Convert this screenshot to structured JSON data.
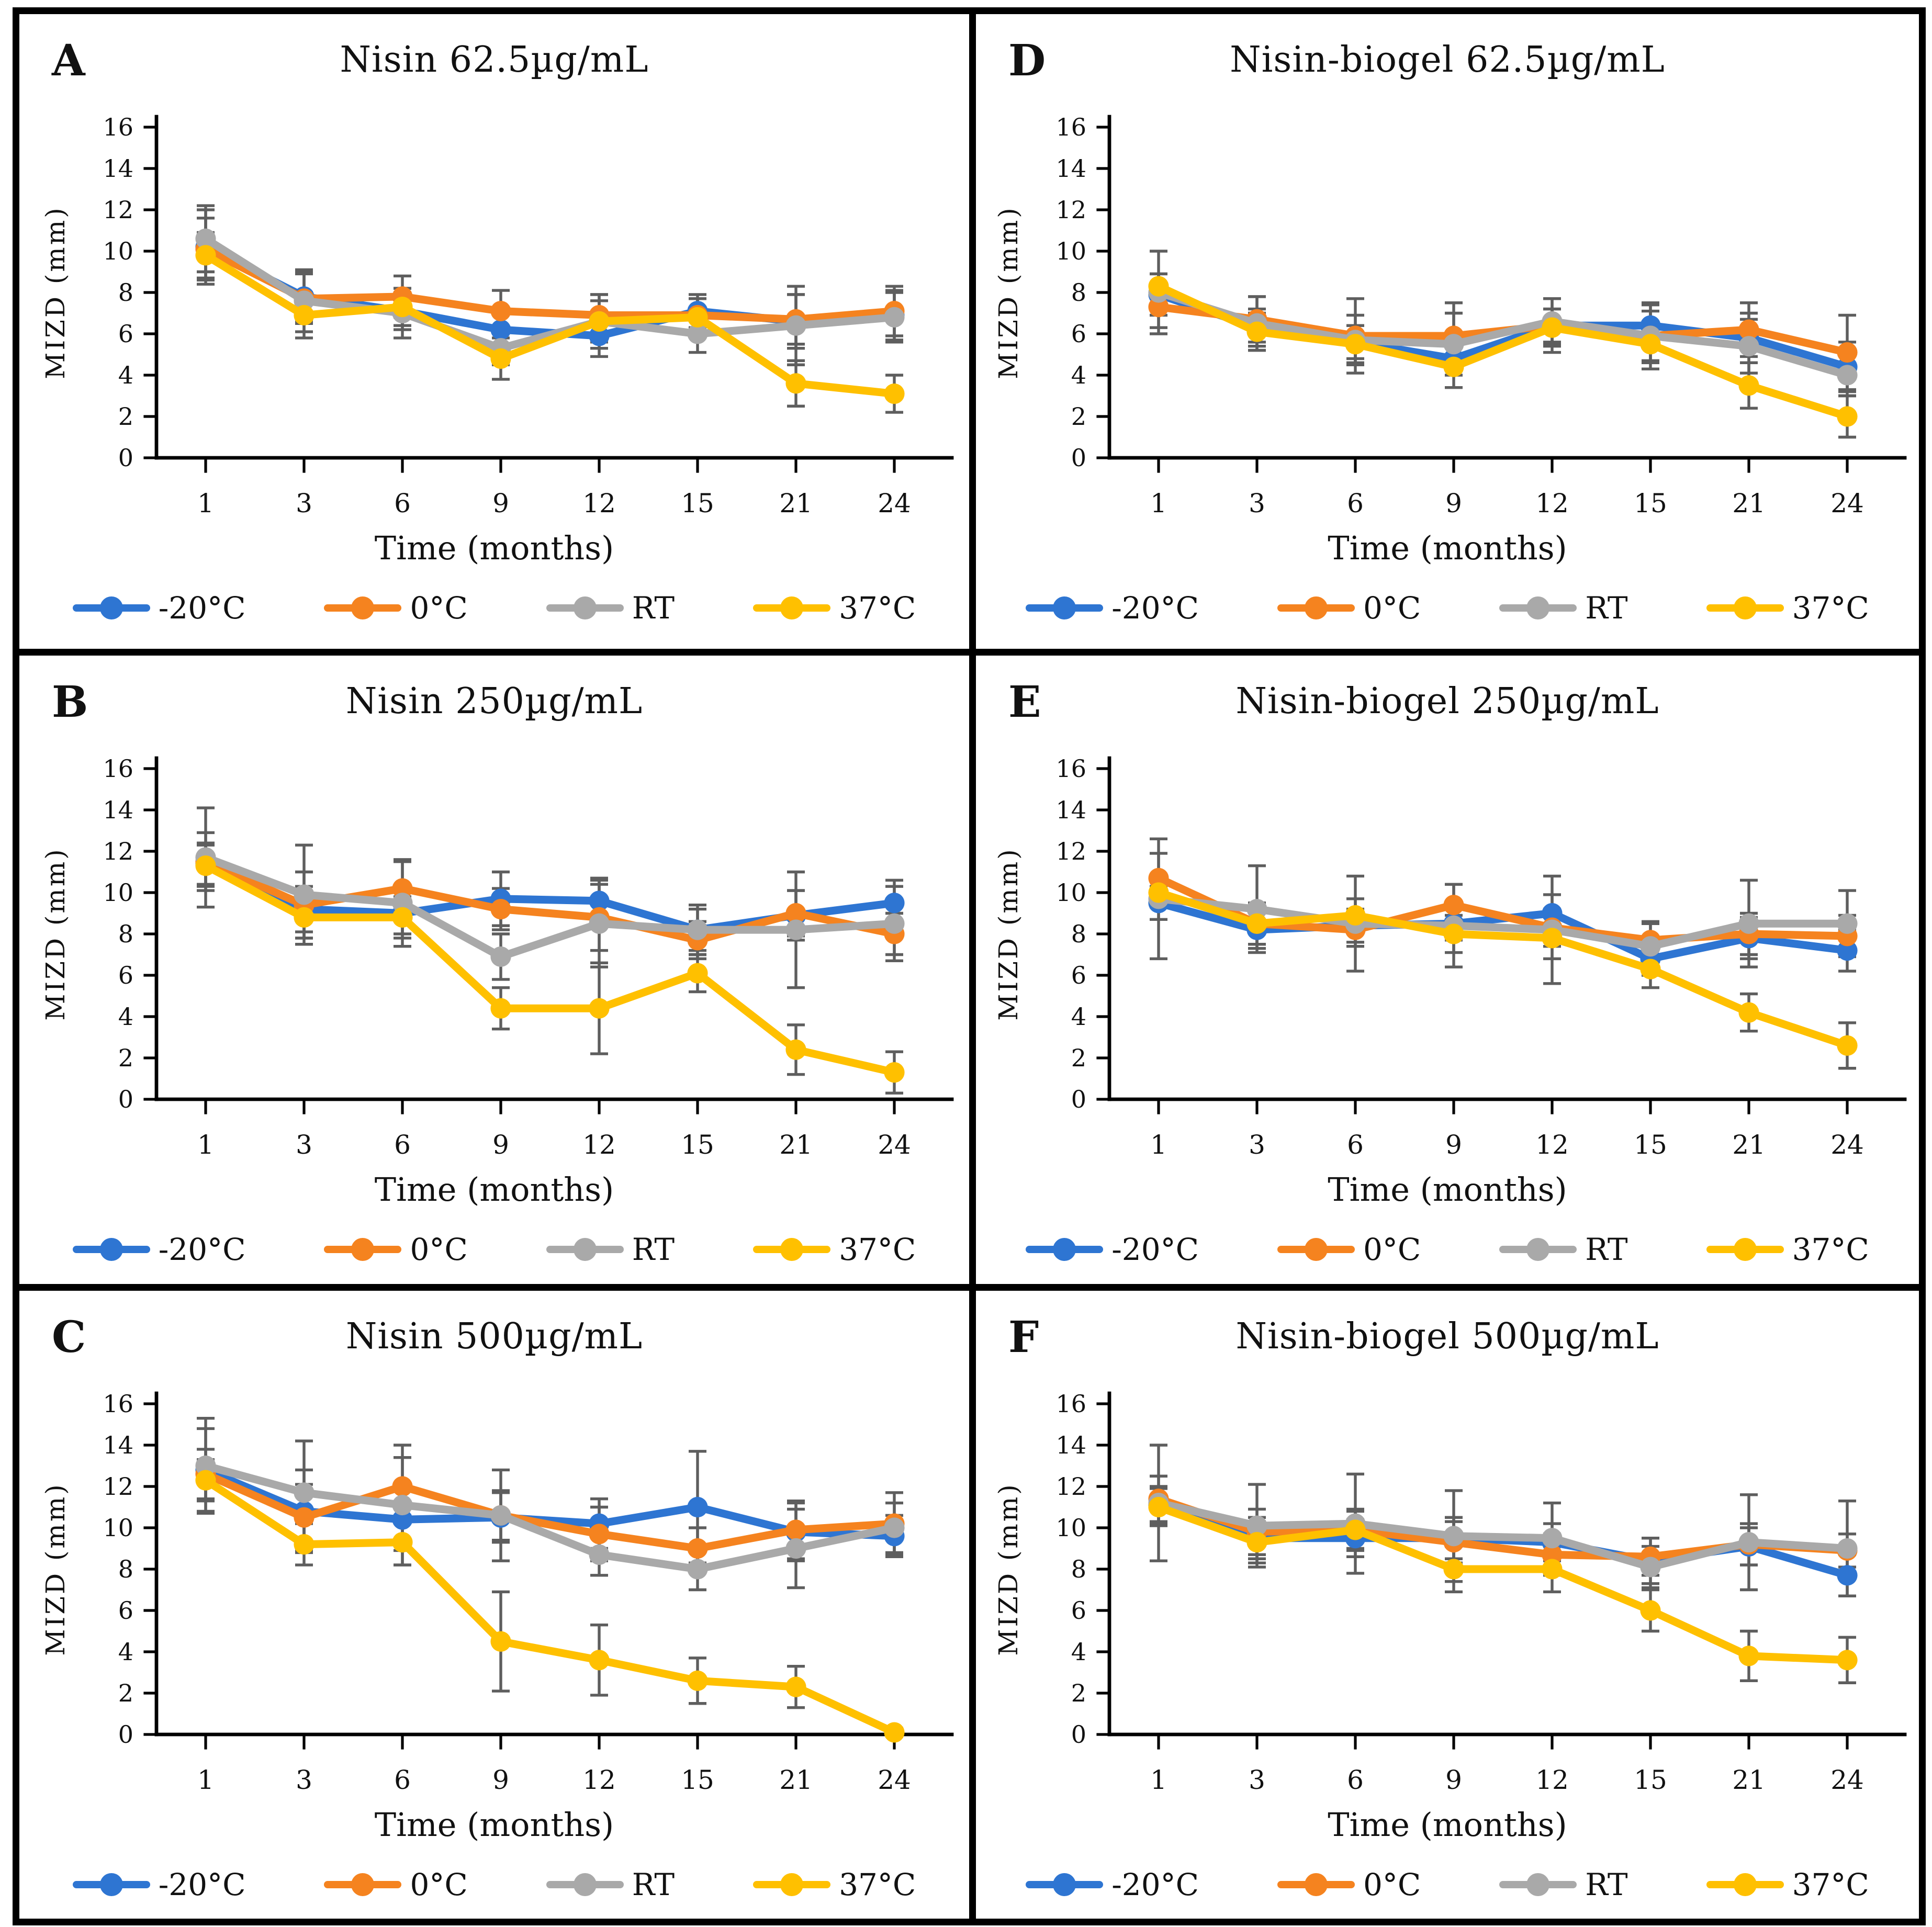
{
  "axes": {
    "xlabel": "Time (months)",
    "ylabel": "MIZD (mm)",
    "categories": [
      1,
      3,
      6,
      9,
      12,
      15,
      21,
      24
    ],
    "ylim": [
      0,
      16
    ],
    "ytick_step": 2
  },
  "legend": {
    "items": [
      {
        "label": "-20°C",
        "color": "#2E75D2"
      },
      {
        "label": "0°C",
        "color": "#F5831F"
      },
      {
        "label": "RT",
        "color": "#A9A9A9"
      },
      {
        "label": "37°C",
        "color": "#FFC000"
      }
    ]
  },
  "colors": {
    "axis": "#000000",
    "error_bar": "#5E5E5E",
    "text": "#111111",
    "border": "#000000"
  },
  "chart_data": [
    {
      "panel": "A",
      "type": "line",
      "title": "Nisin 62.5µg/mL",
      "xlabel": "Time (months)",
      "ylabel": "MIZD (mm)",
      "categories": [
        1,
        3,
        6,
        9,
        12,
        15,
        21,
        24
      ],
      "ylim": [
        0,
        16
      ],
      "series": [
        {
          "name": "-20°C",
          "color": "#2E75D2",
          "values": [
            10.2,
            7.8,
            7.1,
            6.2,
            5.9,
            7.1,
            6.6,
            6.9
          ],
          "err": [
            1.8,
            1.2,
            0.9,
            1.0,
            1.0,
            0.8,
            1.3,
            1.2
          ]
        },
        {
          "name": "0°C",
          "color": "#F5831F",
          "values": [
            10.1,
            7.7,
            7.8,
            7.1,
            6.9,
            6.9,
            6.7,
            7.1
          ],
          "err": [
            1.5,
            1.2,
            1.0,
            1.0,
            1.0,
            0.8,
            1.2,
            1.2
          ]
        },
        {
          "name": "RT",
          "color": "#A9A9A9",
          "values": [
            10.6,
            7.6,
            7.0,
            5.3,
            6.6,
            6.0,
            6.4,
            6.8
          ],
          "err": [
            1.6,
            1.5,
            1.2,
            0.8,
            1.3,
            0.9,
            1.9,
            1.2
          ]
        },
        {
          "name": "37°C",
          "color": "#FFC000",
          "values": [
            9.8,
            6.9,
            7.3,
            4.8,
            6.6,
            6.8,
            3.6,
            3.1
          ],
          "err": [
            1.1,
            1.1,
            0.9,
            1.0,
            1.0,
            0.9,
            1.1,
            0.9
          ]
        }
      ]
    },
    {
      "panel": "B",
      "type": "line",
      "title": "Nisin 250µg/mL",
      "xlabel": "Time (months)",
      "ylabel": "MIZD (mm)",
      "categories": [
        1,
        3,
        6,
        9,
        12,
        15,
        21,
        24
      ],
      "ylim": [
        0,
        16
      ],
      "series": [
        {
          "name": "-20°C",
          "color": "#2E75D2",
          "values": [
            11.4,
            9.2,
            9.0,
            9.7,
            9.6,
            8.2,
            8.9,
            9.5
          ],
          "err": [
            1.0,
            1.1,
            1.0,
            1.3,
            1.1,
            1.0,
            1.2,
            1.1
          ]
        },
        {
          "name": "0°C",
          "color": "#F5831F",
          "values": [
            11.5,
            9.4,
            10.2,
            9.2,
            8.8,
            7.7,
            9.0,
            8.0
          ],
          "err": [
            1.4,
            1.6,
            1.3,
            1.0,
            1.6,
            0.9,
            1.1,
            1.0
          ]
        },
        {
          "name": "RT",
          "color": "#A9A9A9",
          "values": [
            11.7,
            9.9,
            9.5,
            6.9,
            8.5,
            8.2,
            8.2,
            8.5
          ],
          "err": [
            2.4,
            2.4,
            2.1,
            1.1,
            2.1,
            1.2,
            2.8,
            1.8
          ]
        },
        {
          "name": "37°C",
          "color": "#FFC000",
          "values": [
            11.3,
            8.8,
            8.8,
            4.4,
            4.4,
            6.1,
            2.4,
            1.3
          ],
          "err": [
            1.0,
            1.0,
            1.0,
            1.0,
            2.2,
            0.9,
            1.2,
            1.0
          ]
        }
      ]
    },
    {
      "panel": "C",
      "type": "line",
      "title": "Nisin 500µg/mL",
      "xlabel": "Time (months)",
      "ylabel": "MIZD (mm)",
      "categories": [
        1,
        3,
        6,
        9,
        12,
        15,
        21,
        24
      ],
      "ylim": [
        0,
        16
      ],
      "series": [
        {
          "name": "-20°C",
          "color": "#2E75D2",
          "values": [
            12.8,
            10.8,
            10.4,
            10.5,
            10.2,
            11.0,
            9.8,
            9.6
          ],
          "err": [
            2.0,
            2.0,
            1.5,
            1.2,
            1.2,
            2.7,
            1.4,
            1.0
          ]
        },
        {
          "name": "0°C",
          "color": "#F5831F",
          "values": [
            12.6,
            10.5,
            12.0,
            10.6,
            9.7,
            9.0,
            9.9,
            10.2
          ],
          "err": [
            1.2,
            1.6,
            1.4,
            1.2,
            1.3,
            1.0,
            1.4,
            1.5
          ]
        },
        {
          "name": "RT",
          "color": "#A9A9A9",
          "values": [
            13.0,
            11.7,
            11.1,
            10.6,
            8.7,
            8.0,
            9.0,
            10.0
          ],
          "err": [
            2.3,
            2.5,
            2.9,
            2.2,
            1.0,
            1.0,
            1.9,
            1.2
          ]
        },
        {
          "name": "37°C",
          "color": "#FFC000",
          "values": [
            12.3,
            9.2,
            9.3,
            4.5,
            3.6,
            2.6,
            2.3,
            0.1
          ],
          "err": [
            1.0,
            1.0,
            1.1,
            2.4,
            1.7,
            1.1,
            1.0,
            0.2
          ]
        }
      ]
    },
    {
      "panel": "D",
      "type": "line",
      "title": "Nisin-biogel 62.5µg/mL",
      "xlabel": "Time (months)",
      "ylabel": "MIZD (mm)",
      "categories": [
        1,
        3,
        6,
        9,
        12,
        15,
        21,
        24
      ],
      "ylim": [
        0,
        16
      ],
      "series": [
        {
          "name": "-20°C",
          "color": "#2E75D2",
          "values": [
            7.9,
            6.3,
            5.6,
            4.8,
            6.4,
            6.4,
            5.8,
            4.4
          ],
          "err": [
            1.0,
            0.9,
            0.8,
            0.6,
            0.8,
            1.0,
            1.2,
            1.2
          ]
        },
        {
          "name": "0°C",
          "color": "#F5831F",
          "values": [
            7.3,
            6.7,
            5.9,
            5.9,
            6.4,
            5.9,
            6.2,
            5.1
          ],
          "err": [
            1.0,
            1.1,
            1.8,
            1.6,
            1.3,
            1.6,
            1.3,
            1.8
          ]
        },
        {
          "name": "RT",
          "color": "#A9A9A9",
          "values": [
            8.0,
            6.5,
            5.7,
            5.5,
            6.6,
            5.9,
            5.4,
            4.0
          ],
          "err": [
            2.0,
            1.3,
            1.2,
            1.5,
            1.1,
            1.2,
            1.3,
            1.0
          ]
        },
        {
          "name": "37°C",
          "color": "#FFC000",
          "values": [
            8.3,
            6.1,
            5.5,
            4.4,
            6.3,
            5.5,
            3.5,
            2.0
          ],
          "err": [
            0.6,
            0.9,
            0.9,
            1.0,
            0.9,
            0.9,
            1.1,
            1.0
          ]
        }
      ]
    },
    {
      "panel": "E",
      "type": "line",
      "title": "Nisin-biogel 250µg/mL",
      "xlabel": "Time (months)",
      "ylabel": "MIZD (mm)",
      "categories": [
        1,
        3,
        6,
        9,
        12,
        15,
        21,
        24
      ],
      "ylim": [
        0,
        16
      ],
      "series": [
        {
          "name": "-20°C",
          "color": "#2E75D2",
          "values": [
            9.5,
            8.2,
            8.4,
            8.5,
            9.0,
            6.8,
            7.8,
            7.2
          ],
          "err": [
            0.8,
            0.9,
            0.8,
            0.8,
            0.9,
            0.8,
            1.0,
            1.0
          ]
        },
        {
          "name": "0°C",
          "color": "#F5831F",
          "values": [
            10.7,
            8.5,
            8.2,
            9.4,
            8.3,
            7.7,
            8.0,
            7.9
          ],
          "err": [
            1.2,
            1.0,
            0.8,
            1.0,
            0.9,
            0.8,
            1.0,
            1.0
          ]
        },
        {
          "name": "RT",
          "color": "#A9A9A9",
          "values": [
            9.7,
            9.2,
            8.5,
            8.4,
            8.2,
            7.4,
            8.5,
            8.5
          ],
          "err": [
            2.9,
            2.1,
            2.3,
            2.0,
            2.6,
            1.2,
            2.1,
            1.6
          ]
        },
        {
          "name": "37°C",
          "color": "#FFC000",
          "values": [
            10.0,
            8.5,
            8.9,
            8.0,
            7.8,
            6.3,
            4.2,
            2.6
          ],
          "err": [
            0.7,
            1.0,
            0.8,
            0.9,
            1.0,
            0.9,
            0.9,
            1.1
          ]
        }
      ]
    },
    {
      "panel": "F",
      "type": "line",
      "title": "Nisin-biogel 500µg/mL",
      "xlabel": "Time (months)",
      "ylabel": "MIZD (mm)",
      "categories": [
        1,
        3,
        6,
        9,
        12,
        15,
        21,
        24
      ],
      "ylim": [
        0,
        16
      ],
      "series": [
        {
          "name": "-20°C",
          "color": "#2E75D2",
          "values": [
            11.1,
            9.5,
            9.5,
            9.5,
            9.3,
            8.4,
            9.1,
            7.7
          ],
          "err": [
            0.9,
            1.0,
            0.9,
            1.0,
            0.9,
            1.1,
            0.9,
            1.0
          ]
        },
        {
          "name": "0°C",
          "color": "#F5831F",
          "values": [
            11.4,
            9.8,
            9.9,
            9.3,
            8.7,
            8.6,
            9.2,
            8.9
          ],
          "err": [
            1.1,
            1.1,
            1.0,
            1.0,
            1.0,
            0.9,
            1.0,
            0.8
          ]
        },
        {
          "name": "RT",
          "color": "#A9A9A9",
          "values": [
            11.2,
            10.1,
            10.2,
            9.6,
            9.5,
            8.1,
            9.3,
            9.0
          ],
          "err": [
            2.8,
            2.0,
            2.4,
            2.2,
            1.7,
            1.0,
            2.3,
            2.3
          ]
        },
        {
          "name": "37°C",
          "color": "#FFC000",
          "values": [
            11.0,
            9.3,
            9.9,
            8.0,
            8.0,
            6.0,
            3.8,
            3.6
          ],
          "err": [
            0.9,
            1.0,
            0.9,
            1.1,
            1.1,
            1.0,
            1.2,
            1.1
          ]
        }
      ]
    }
  ]
}
